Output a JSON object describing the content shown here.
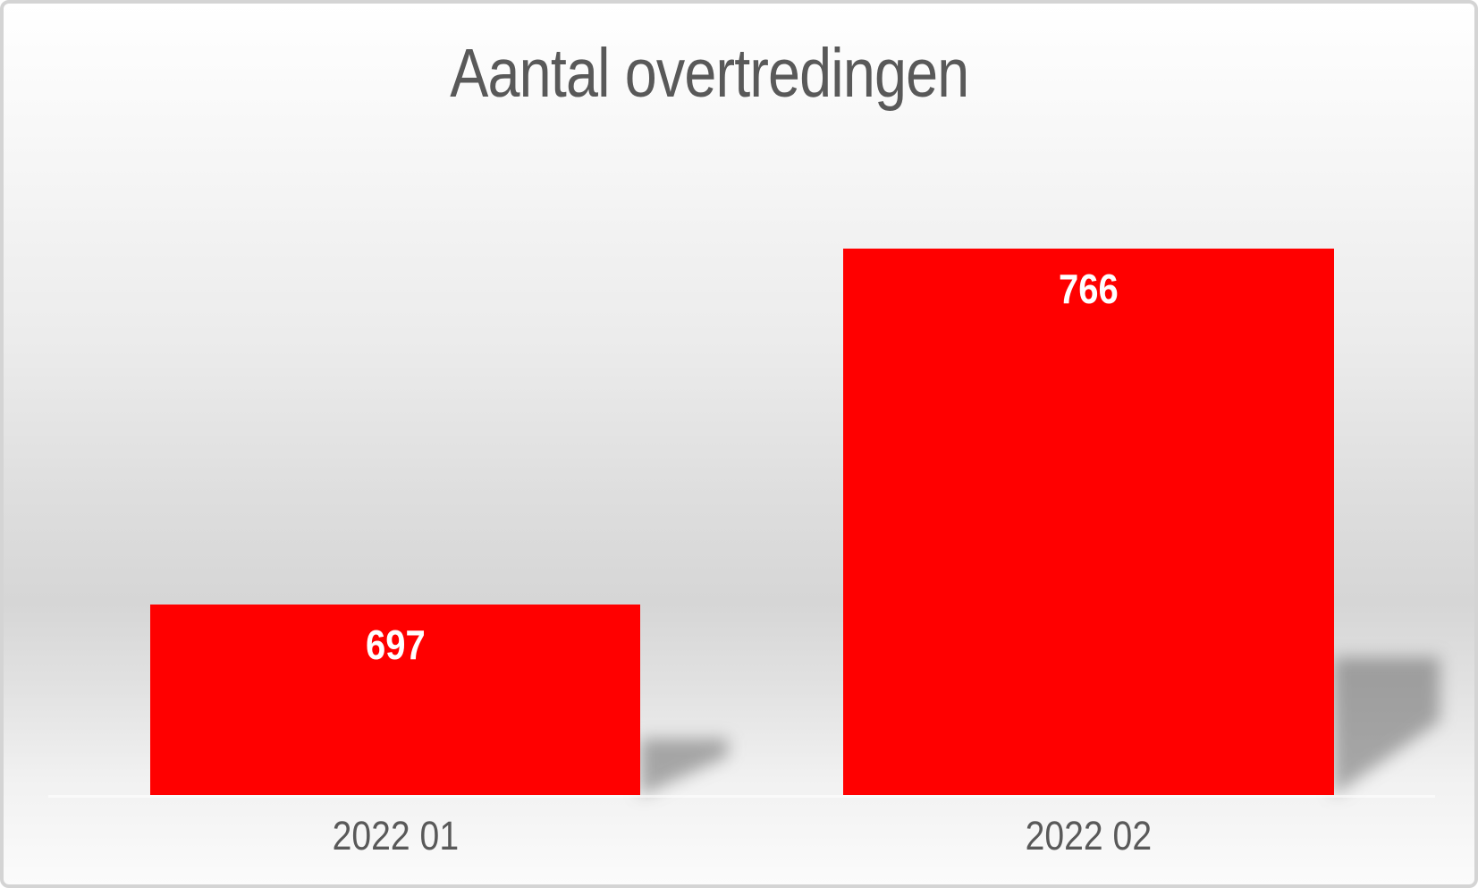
{
  "chart_data": {
    "type": "bar",
    "title": "Aantal overtredingen",
    "categories": [
      "2022 01",
      "2022 02"
    ],
    "values": [
      697,
      766
    ],
    "data_labels": [
      "697",
      "766"
    ],
    "series": [
      {
        "name": "Aantal overtredingen",
        "values": [
          697,
          766
        ]
      }
    ],
    "xlabel": "",
    "ylabel": "",
    "legend": "none",
    "grid": false,
    "axis_baseline_value_estimate": 660,
    "bar_color": "#ff0000",
    "title_color": "#595959",
    "category_label_color": "#595959",
    "data_label_color": "#ffffff",
    "frame_border_color": "#d4d4d4",
    "background_style": "vertical gradient white to gray to white"
  }
}
